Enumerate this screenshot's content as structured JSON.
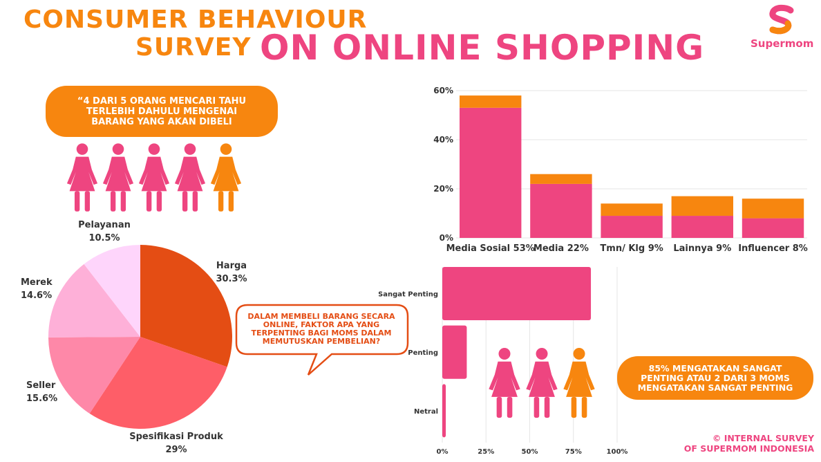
{
  "header": {
    "title_line1": "CONSUMER BEHAVIOUR",
    "title_line2": "SURVEY",
    "title_line3": "ON ONLINE SHOPPING"
  },
  "brand": {
    "name": "Supermom",
    "logo_letter": "S"
  },
  "colors": {
    "orange": "#f7860f",
    "pink": "#ee4580",
    "dark_text": "#333333",
    "grid": "#e6e6e6"
  },
  "quote": {
    "text": "“4 DARI 5 ORANG MENCARI TAHU TERLEBIH DAHULU MENGENAI BARANG YANG AKAN DIBELI"
  },
  "speech_bubble": {
    "text": "DALAM MEMBELI BARANG SECARA ONLINE, FAKTOR APA YANG TERPENTING BAGI MOMS DALAM MEMUTUSKAN PEMBELIAN?"
  },
  "stat_pill": {
    "text": "85% MENGATAKAN SANGAT PENTING ATAU 2 DARI 3 MOMS MENGATAKAN SANGAT PENTING"
  },
  "footer": {
    "line1": "© INTERNAL SURVEY",
    "line2": "OF SUPERMOM INDONESIA"
  },
  "pictograms": {
    "top": [
      "pink",
      "pink",
      "pink",
      "pink",
      "orange"
    ],
    "bottom": [
      "pink",
      "pink",
      "orange"
    ]
  },
  "chart_data": [
    {
      "type": "pie",
      "slices": [
        {
          "label": "Harga",
          "value_label": "30.3%",
          "value": 30.3,
          "color": "#e44d14"
        },
        {
          "label": "Spesifikasi Produk",
          "value_label": "29%",
          "value": 29,
          "color": "#fe5e68"
        },
        {
          "label": "Seller",
          "value_label": "15.6%",
          "value": 15.6,
          "color": "#fe88a8"
        },
        {
          "label": "Merek",
          "value_label": "14.6%",
          "value": 14.6,
          "color": "#feb0d8"
        },
        {
          "label": "Pelayanan",
          "value_label": "10.5%",
          "value": 10.5,
          "color": "#fed5fb"
        }
      ]
    },
    {
      "type": "bar",
      "stacked": true,
      "categories": [
        "Media Sosial 53%",
        "Media 22%",
        "Tmn/ Klg  9%",
        "Lainnya 9%",
        "Influencer 8%"
      ],
      "series": [
        {
          "values": [
            53,
            22,
            9,
            9,
            8
          ],
          "color": "#ee4580"
        },
        {
          "values": [
            5,
            4,
            5,
            8,
            8
          ],
          "color": "#f7860f"
        }
      ],
      "yticks": [
        "0%",
        "20%",
        "40%",
        "60%"
      ],
      "ylim": [
        0,
        60
      ],
      "grid": true
    },
    {
      "type": "bar",
      "orientation": "horizontal",
      "categories": [
        "Sangat Penting",
        "Penting",
        "Netral"
      ],
      "values": [
        85,
        14,
        2
      ],
      "color": "#ee4580",
      "xticks": [
        "0%",
        "25%",
        "50%",
        "75%",
        "100%"
      ],
      "xlim": [
        0,
        100
      ],
      "grid": true
    }
  ]
}
